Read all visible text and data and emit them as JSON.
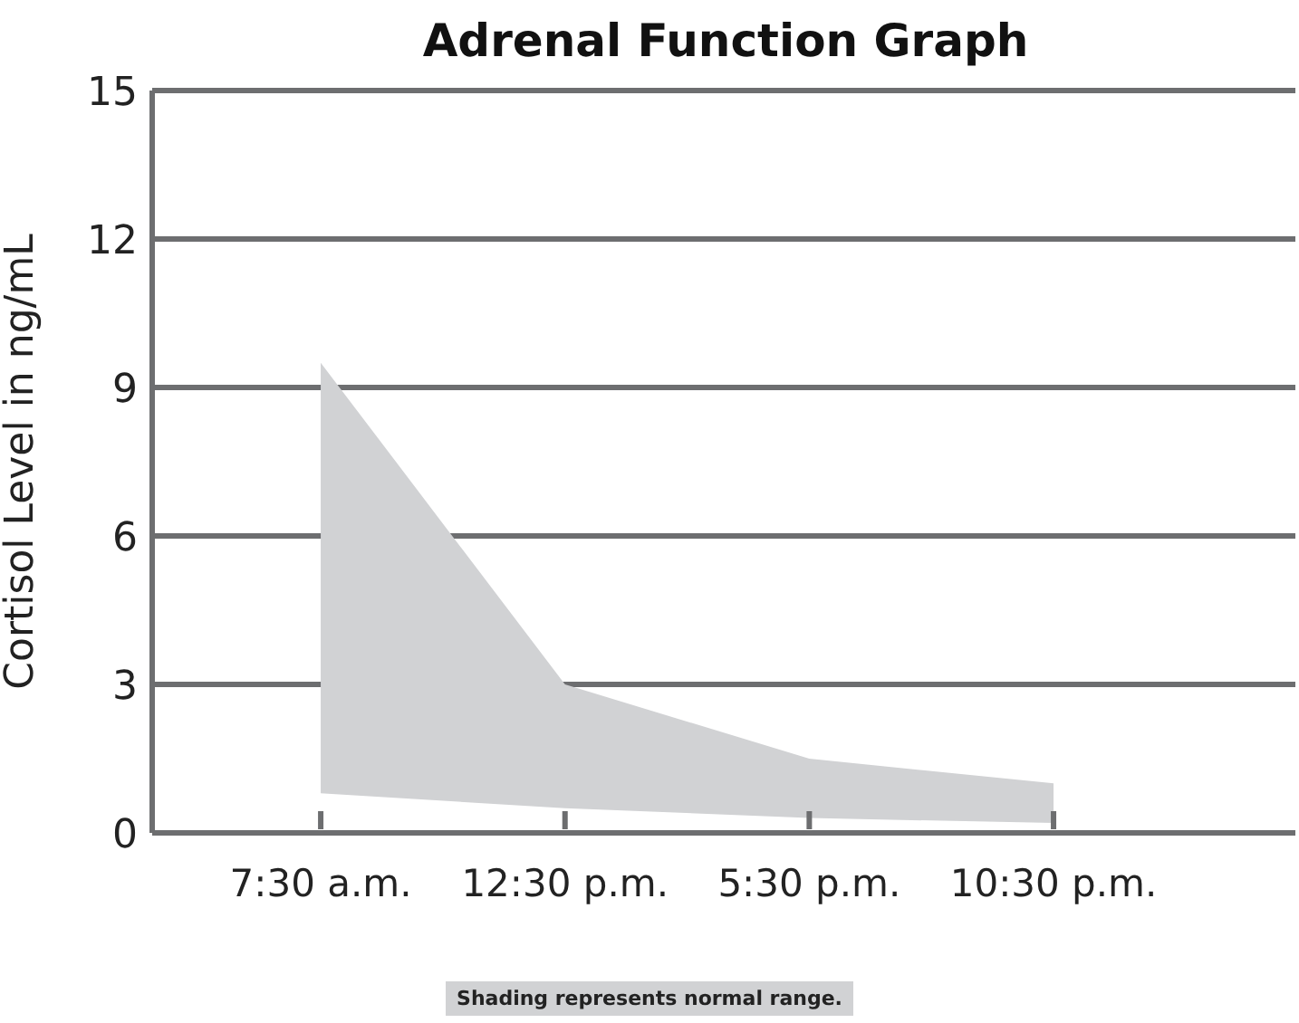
{
  "chart_data": {
    "type": "area",
    "title": "Adrenal Function Graph",
    "ylabel": "Cortisol Level in ng/mL",
    "categories": [
      "7:30 a.m.",
      "12:30 p.m.",
      "5:30 p.m.",
      "10:30 p.m."
    ],
    "series": [
      {
        "color": "#d1d2d4",
        "values": [
          null,
          null,
          null,
          null
        ],
        "lower": [
          0.8,
          0.5,
          0.3,
          0.2
        ],
        "upper": [
          9.5,
          3.0,
          1.5,
          1.0
        ]
      }
    ],
    "ylim": [
      0,
      15
    ],
    "yticks": [
      0,
      3,
      6,
      9,
      12,
      15
    ],
    "grid": "y",
    "annotations": [
      "Shading represents normal range."
    ]
  }
}
